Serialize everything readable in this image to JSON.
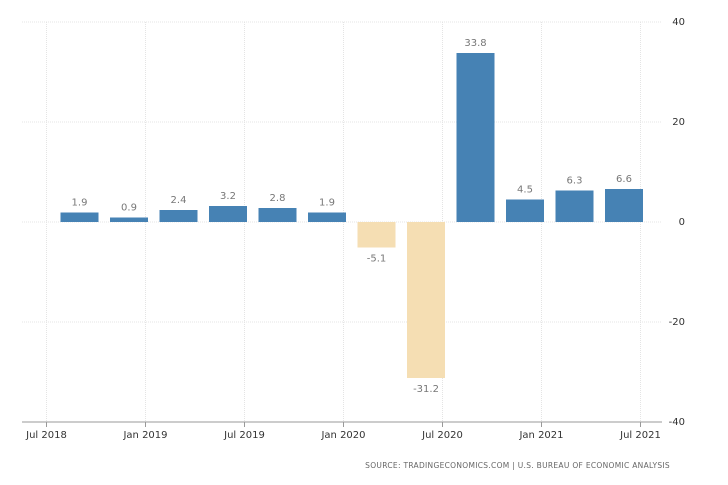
{
  "chart_data": {
    "type": "bar",
    "x": [
      "2018-09",
      "2018-12",
      "2019-03",
      "2019-06",
      "2019-09",
      "2019-12",
      "2020-03",
      "2020-06",
      "2020-09",
      "2020-12",
      "2021-03",
      "2021-06"
    ],
    "values": [
      1.9,
      0.9,
      2.4,
      3.2,
      2.8,
      1.9,
      -5.1,
      -31.2,
      33.8,
      4.5,
      6.3,
      6.6
    ],
    "color": "#4682b4",
    "negative_color": "#f5deb3",
    "xlim": [
      "2018-06",
      "2021-08"
    ],
    "xticks": [
      {
        "value": "2018-07",
        "label": "Jul 2018"
      },
      {
        "value": "2019-01",
        "label": "Jan 2019"
      },
      {
        "value": "2019-07",
        "label": "Jul 2019"
      },
      {
        "value": "2020-01",
        "label": "Jan 2020"
      },
      {
        "value": "2020-07",
        "label": "Jul 2020"
      },
      {
        "value": "2021-01",
        "label": "Jan 2021"
      },
      {
        "value": "2021-07",
        "label": "Jul 2021"
      }
    ],
    "ylim": [
      -40,
      40
    ],
    "yticks": [
      -40,
      -20,
      0,
      20,
      40
    ],
    "grid": true,
    "source": "SOURCE: TRADINGECONOMICS.COM | U.S. BUREAU OF ECONOMIC ANALYSIS"
  }
}
